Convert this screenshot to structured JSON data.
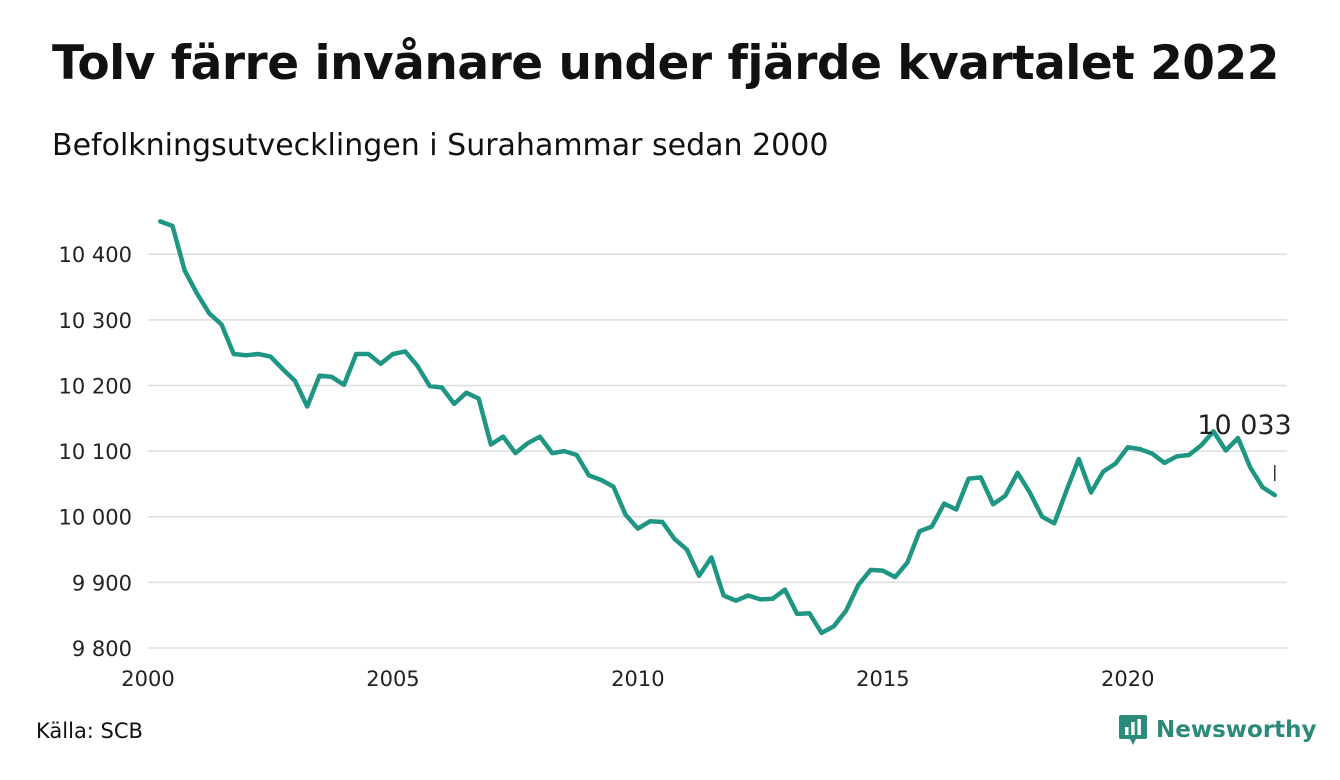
{
  "header": {
    "title": "Tolv färre invånare under fjärde kvartalet 2022",
    "subtitle": "Befolkningsutvecklingen i Surahammar sedan 2000"
  },
  "footer": {
    "source": "Källa: SCB",
    "brand": "Newsworthy",
    "brand_icon": "newsworthy-logo-icon"
  },
  "chart_data": {
    "type": "line",
    "title": "Tolv färre invånare under fjärde kvartalet 2022",
    "subtitle": "Befolkningsutvecklingen i Surahammar sedan 2000",
    "xlabel": "",
    "ylabel": "",
    "x_tick_labels": [
      "2000",
      "2005",
      "2010",
      "2015",
      "2020"
    ],
    "y_tick_labels": [
      "9 800",
      "9 900",
      "10 000",
      "10 100",
      "10 200",
      "10 300",
      "10 400"
    ],
    "y_tick_values": [
      9800,
      9900,
      10000,
      10100,
      10200,
      10300,
      10400
    ],
    "x_tick_years": [
      2000,
      2005,
      2010,
      2015,
      2020
    ],
    "xlim": [
      2000,
      2023.25
    ],
    "ylim": [
      9800,
      10475
    ],
    "grid": true,
    "line_color": "#1f9584",
    "annotation": {
      "text": "10 033",
      "x": 2023.0,
      "y": 10033
    },
    "series": [
      {
        "x": [
          2000.25,
          2000.5,
          2000.75,
          2001.0,
          2001.25,
          2001.5,
          2001.75,
          2002.0,
          2002.25,
          2002.5,
          2002.75,
          2003.0,
          2003.25,
          2003.5,
          2003.75,
          2004.0,
          2004.25,
          2004.5,
          2004.75,
          2005.0,
          2005.25,
          2005.5,
          2005.75,
          2006.0,
          2006.25,
          2006.5,
          2006.75,
          2007.0,
          2007.25,
          2007.5,
          2007.75,
          2008.0,
          2008.25,
          2008.5,
          2008.75,
          2009.0,
          2009.25,
          2009.5,
          2009.75,
          2010.0,
          2010.25,
          2010.5,
          2010.75,
          2011.0,
          2011.25,
          2011.5,
          2011.75,
          2012.0,
          2012.25,
          2012.5,
          2012.75,
          2013.0,
          2013.25,
          2013.5,
          2013.75,
          2014.0,
          2014.25,
          2014.5,
          2014.75,
          2015.0,
          2015.25,
          2015.5,
          2015.75,
          2016.0,
          2016.25,
          2016.5,
          2016.75,
          2017.0,
          2017.25,
          2017.5,
          2017.75,
          2018.0,
          2018.25,
          2018.5,
          2018.75,
          2019.0,
          2019.25,
          2019.5,
          2019.75,
          2020.0,
          2020.25,
          2020.5,
          2020.75,
          2021.0,
          2021.25,
          2021.5,
          2021.75,
          2022.0,
          2022.25,
          2022.5,
          2022.75,
          2023.0
        ],
        "values": [
          10450,
          10443,
          10375,
          10340,
          10310,
          10293,
          10248,
          10246,
          10248,
          10244,
          10225,
          10207,
          10168,
          10215,
          10213,
          10201,
          10248,
          10248,
          10233,
          10248,
          10252,
          10230,
          10199,
          10197,
          10172,
          10189,
          10180,
          10110,
          10122,
          10097,
          10112,
          10122,
          10097,
          10100,
          10094,
          10063,
          10056,
          10046,
          10003,
          9982,
          9993,
          9992,
          9966,
          9950,
          9910,
          9938,
          9880,
          9872,
          9880,
          9874,
          9875,
          9889,
          9852,
          9853,
          9823,
          9833,
          9857,
          9896,
          9919,
          9918,
          9908,
          9930,
          9978,
          9985,
          10020,
          10011,
          10058,
          10060,
          10019,
          10032,
          10067,
          10037,
          10000,
          9990,
          10040,
          10088,
          10037,
          10069,
          10081,
          10106,
          10103,
          10096,
          10082,
          10092,
          10094,
          10109,
          10130,
          10101,
          10120,
          10075,
          10045,
          10033
        ]
      }
    ]
  }
}
